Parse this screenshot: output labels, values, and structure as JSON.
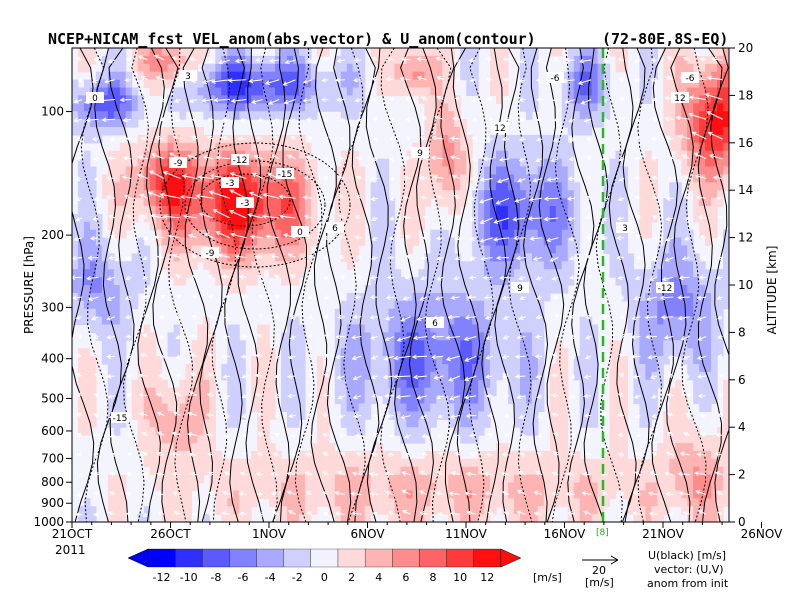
{
  "chart_data": {
    "type": "heatmap",
    "title": "NCEP+NICAM_fcst VEL_anom(abs,vector) & U_anom(contour)",
    "region": "(72-80E,8S-EQ)",
    "year_label": "2011",
    "ylabel_left": "PRESSURE [hPa]",
    "ylabel_right": "ALTITUDE [km]",
    "x_categories": [
      "21OCT",
      "26OCT",
      "1NOV",
      "6NOV",
      "11NOV",
      "16NOV",
      "21NOV",
      "26NOV"
    ],
    "y_pressure_ticks": [
      "100",
      "200",
      "300",
      "400",
      "500",
      "600",
      "700",
      "800",
      "900",
      "1000"
    ],
    "y_altitude_ticks": [
      "0",
      "2",
      "4",
      "6",
      "8",
      "10",
      "12",
      "14",
      "16",
      "18",
      "20"
    ],
    "colorbar": {
      "levels": [
        "-12",
        "-10",
        "-8",
        "-6",
        "-4",
        "-2",
        "0",
        "2",
        "4",
        "6",
        "8",
        "10",
        "12"
      ],
      "units": "[m/s]",
      "colors": [
        "#0000ff",
        "#2f2fff",
        "#5a5aff",
        "#8282ff",
        "#a9a9ff",
        "#d0d0ff",
        "#f2f2ff",
        "#ffdada",
        "#ffb4b4",
        "#ff8c8c",
        "#ff6464",
        "#ff3a3a",
        "#ff0f0f"
      ]
    },
    "vector_key": {
      "value": "20",
      "units": "[m/s]"
    },
    "notes": [
      "U(black) [m/s]",
      "vector: (U,V)",
      "anom from init"
    ],
    "forecast_marker_label": "[8]",
    "contour_labels": [
      "-3",
      "0",
      "3",
      "6",
      "9",
      "12",
      "-6",
      "-9",
      "-12",
      "-15"
    ]
  }
}
